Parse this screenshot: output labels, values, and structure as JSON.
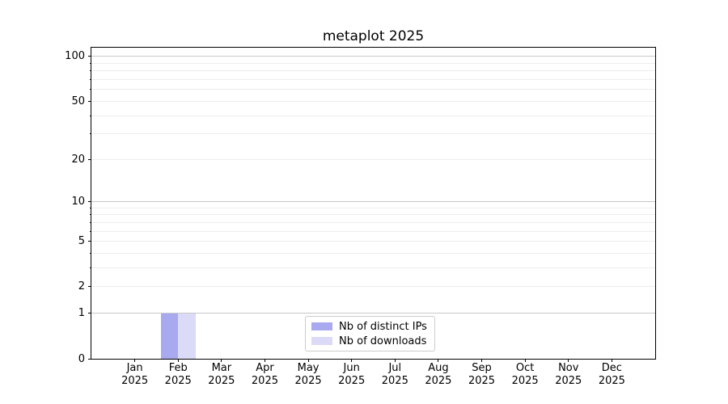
{
  "figure": {
    "background": "#ffffff"
  },
  "chart_data": {
    "type": "bar",
    "title": "metaplot 2025",
    "categories": [
      "Jan 2025",
      "Feb 2025",
      "Mar 2025",
      "Apr 2025",
      "May 2025",
      "Jun 2025",
      "Jul 2025",
      "Aug 2025",
      "Sep 2025",
      "Oct 2025",
      "Nov 2025",
      "Dec 2025"
    ],
    "x_tick_month_labels": [
      "Jan",
      "Feb",
      "Mar",
      "Apr",
      "May",
      "Jun",
      "Jul",
      "Aug",
      "Sep",
      "Oct",
      "Nov",
      "Dec"
    ],
    "x_tick_year_label": "2025",
    "series": [
      {
        "name": "Nb of distinct IPs",
        "color": "#a9a9f0",
        "values": [
          0,
          1,
          0,
          0,
          0,
          0,
          0,
          0,
          0,
          0,
          0,
          0
        ]
      },
      {
        "name": "Nb of downloads",
        "color": "#dbdbf8",
        "values": [
          0,
          1,
          0,
          0,
          0,
          0,
          0,
          0,
          0,
          0,
          0,
          0
        ]
      }
    ],
    "xlabel": "",
    "ylabel": "",
    "yscale": "log10(value+1)",
    "ylim": [
      0,
      114.6
    ],
    "y_tick_values": [
      0,
      1,
      2,
      5,
      10,
      20,
      50,
      100
    ],
    "y_tick_labels": [
      "0",
      "1",
      "2",
      "5",
      "10",
      "20",
      "50",
      "100"
    ],
    "grid": "horizontal",
    "grid_major_values": [
      1,
      10,
      100
    ],
    "grid_minor_values": [
      2,
      3,
      4,
      5,
      6,
      7,
      8,
      9,
      20,
      30,
      40,
      50,
      60,
      70,
      80,
      90
    ],
    "legend_position": "lower center",
    "colors": {
      "grid_major": "#c8c8c8",
      "grid_minor": "#ededed",
      "spine": "#000000",
      "tick_label": "#000000",
      "legend_border": "#cccccc",
      "legend_bg": "#ffffff"
    }
  }
}
